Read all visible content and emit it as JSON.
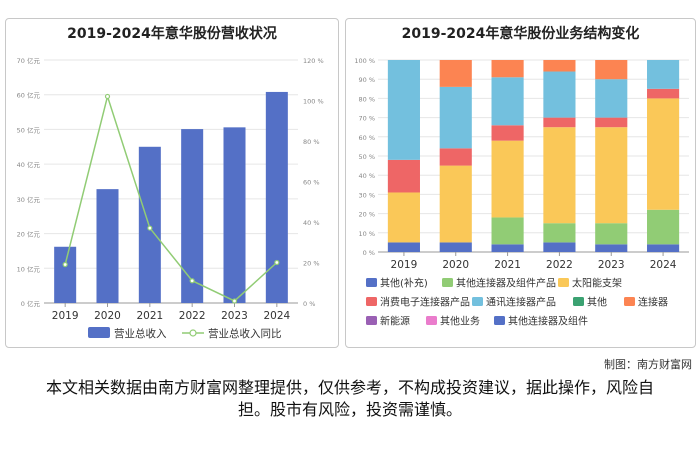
{
  "left_chart": {
    "title": "2019-2024年意华股份营收状况"
  },
  "right_chart": {
    "title": "2019-2024年意华股份业务结构变化"
  },
  "credit": "制图：南方财富网",
  "disclaimer": "本文相关数据由南方财富网整理提供，仅供参考，不构成投资建议，据此操作，风险自担。股市有风险，投资需谨慎。",
  "chart_data": [
    {
      "type": "bar",
      "title": "2019-2024年意华股份营收状况",
      "categories": [
        "2019",
        "2020",
        "2021",
        "2022",
        "2023",
        "2024"
      ],
      "series": [
        {
          "name": "营业总收入",
          "kind": "bar",
          "axis": "left",
          "color": "#5470c6",
          "values": [
            16.2,
            32.8,
            45.0,
            50.1,
            50.6,
            60.8
          ]
        },
        {
          "name": "营业总收入同比",
          "kind": "line",
          "axis": "right",
          "color": "#91cc75",
          "values": [
            19,
            102,
            37,
            11,
            1,
            20
          ]
        }
      ],
      "y_left": {
        "min": 0,
        "max": 70,
        "ticks": [
          0,
          10,
          20,
          30,
          40,
          50,
          60,
          70
        ],
        "tick_labels": [
          "0 亿元",
          "10 亿元",
          "20 亿元",
          "30 亿元",
          "40 亿元",
          "50 亿元",
          "60 亿元",
          "70 亿元"
        ]
      },
      "y_right": {
        "min": 0,
        "max": 120,
        "ticks": [
          0,
          20,
          40,
          60,
          80,
          100,
          120
        ],
        "tick_labels": [
          "0 %",
          "20 %",
          "40 %",
          "60 %",
          "80 %",
          "100 %",
          "120 %"
        ]
      },
      "legend": "bottom",
      "grid": true
    },
    {
      "type": "bar",
      "stacked": true,
      "title": "2019-2024年意华股份业务结构变化",
      "categories": [
        "2019",
        "2020",
        "2021",
        "2022",
        "2023",
        "2024"
      ],
      "y": {
        "min": 0,
        "max": 100,
        "ticks": [
          0,
          10,
          20,
          30,
          40,
          50,
          60,
          70,
          80,
          90,
          100
        ],
        "tick_labels": [
          "0 %",
          "10 %",
          "20 %",
          "30 %",
          "40 %",
          "50 %",
          "60 %",
          "70 %",
          "80 %",
          "90 %",
          "100 %"
        ]
      },
      "series": [
        {
          "name": "其他(补充)",
          "color": "#5470c6",
          "values": [
            5,
            5,
            4,
            5,
            4,
            4
          ]
        },
        {
          "name": "其他连接器及组件产品",
          "color": "#91cc75",
          "values": [
            0,
            0,
            14,
            10,
            11,
            18
          ]
        },
        {
          "name": "太阳能支架",
          "color": "#fac858",
          "values": [
            26,
            40,
            40,
            50,
            50,
            58
          ]
        },
        {
          "name": "消费电子连接器产品",
          "color": "#ee6666",
          "values": [
            17,
            9,
            8,
            5,
            5,
            5
          ]
        },
        {
          "name": "通讯连接器产品",
          "color": "#73c0de",
          "values": [
            52,
            32,
            25,
            24,
            20,
            15
          ]
        },
        {
          "name": "其他",
          "color": "#3ba272",
          "values": [
            0,
            0,
            0,
            0,
            0,
            0
          ]
        },
        {
          "name": "连接器",
          "color": "#fc8452",
          "values": [
            0,
            14,
            9,
            6,
            10,
            0
          ]
        },
        {
          "name": "新能源",
          "color": "#9a60b4",
          "values": [
            0,
            0,
            0,
            0,
            0,
            0
          ]
        },
        {
          "name": "其他业务",
          "color": "#ea7ccc",
          "values": [
            0,
            0,
            0,
            0,
            0,
            0
          ]
        },
        {
          "name": "其他连接器及组件",
          "color": "#5470c6",
          "values": [
            0,
            0,
            0,
            0,
            0,
            0
          ]
        }
      ],
      "legend": "bottom",
      "grid": true
    }
  ]
}
